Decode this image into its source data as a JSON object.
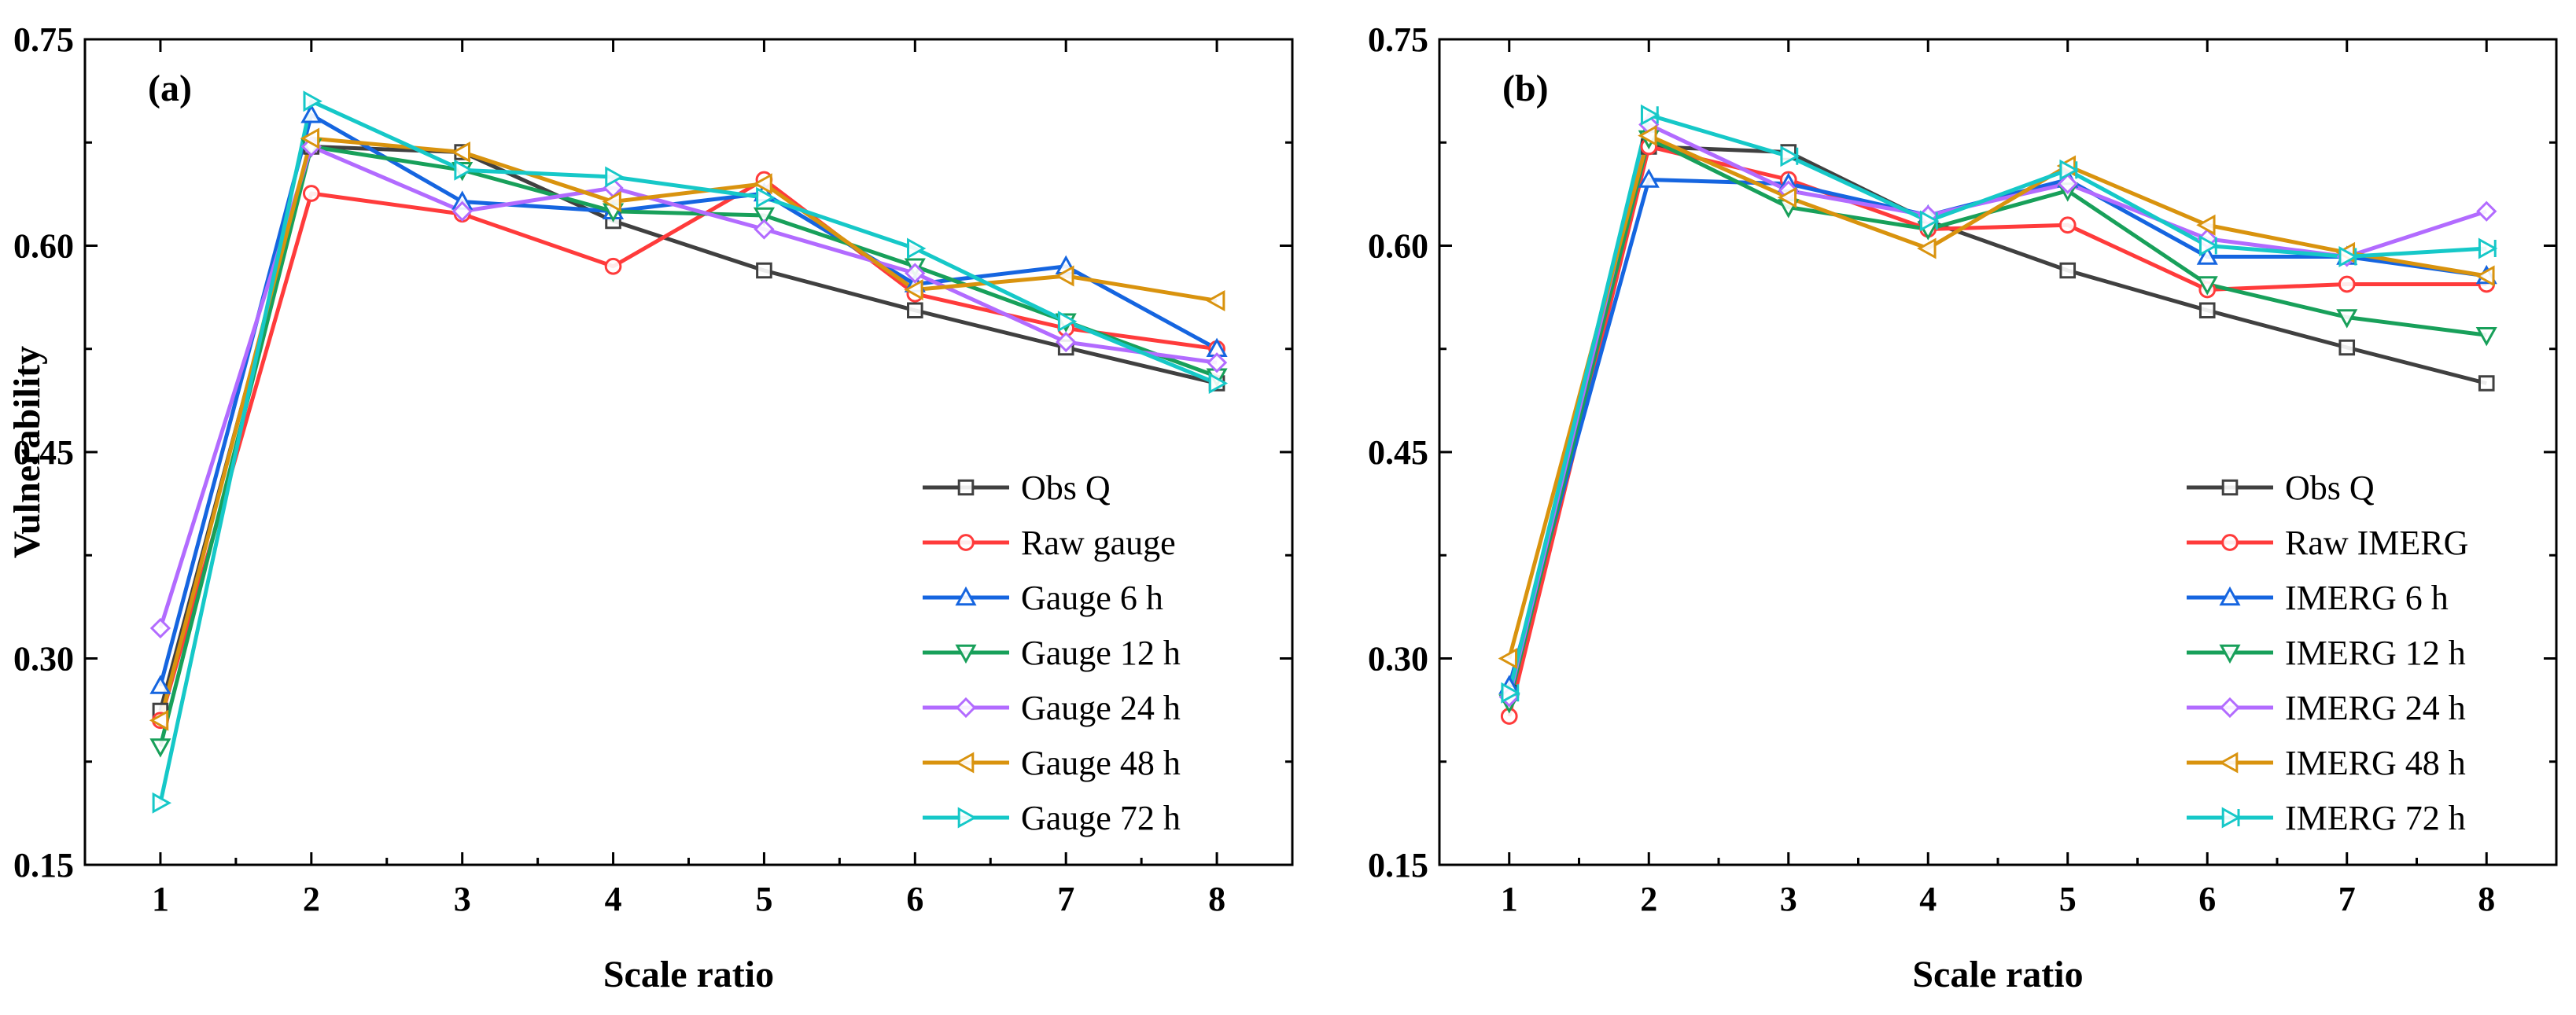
{
  "chart_data": [
    {
      "type": "line",
      "panel_label": "(a)",
      "xlabel": "Scale ratio",
      "ylabel": "Vulnerability",
      "x": [
        1,
        2,
        3,
        4,
        5,
        6,
        7,
        8
      ],
      "xlim": [
        0.5,
        8.5
      ],
      "ylim": [
        0.15,
        0.75
      ],
      "yticks": [
        "0.15",
        "0.30",
        "0.45",
        "0.60",
        "0.75"
      ],
      "legend_position": "bottom-right",
      "series": [
        {
          "name": "Obs Q",
          "color": "#404040",
          "marker": "square",
          "values": [
            0.262,
            0.672,
            0.668,
            0.618,
            0.582,
            0.553,
            0.526,
            0.5
          ]
        },
        {
          "name": "Raw gauge",
          "color": "#ff3b3b",
          "marker": "circle",
          "values": [
            0.255,
            0.638,
            0.623,
            0.585,
            0.648,
            0.565,
            0.54,
            0.525
          ]
        },
        {
          "name": "Gauge 6 h",
          "color": "#1565e0",
          "marker": "triangle-up",
          "values": [
            0.28,
            0.695,
            0.632,
            0.625,
            0.638,
            0.572,
            0.585,
            0.525
          ]
        },
        {
          "name": "Gauge 12 h",
          "color": "#18a05a",
          "marker": "triangle-down",
          "values": [
            0.236,
            0.672,
            0.655,
            0.625,
            0.622,
            0.585,
            0.545,
            0.505
          ]
        },
        {
          "name": "Gauge 24 h",
          "color": "#b26bff",
          "marker": "diamond",
          "values": [
            0.322,
            0.672,
            0.625,
            0.642,
            0.612,
            0.58,
            0.53,
            0.515
          ]
        },
        {
          "name": "Gauge 48 h",
          "color": "#d9930e",
          "marker": "triangle-left",
          "values": [
            0.255,
            0.678,
            0.668,
            0.632,
            0.645,
            0.568,
            0.578,
            0.56
          ]
        },
        {
          "name": "Gauge 72 h",
          "color": "#16c8c8",
          "marker": "triangle-right",
          "values": [
            0.195,
            0.705,
            0.655,
            0.65,
            0.635,
            0.598,
            0.545,
            0.5
          ]
        }
      ]
    },
    {
      "type": "line",
      "panel_label": "(b)",
      "xlabel": "Scale ratio",
      "ylabel": "",
      "x": [
        1,
        2,
        3,
        4,
        5,
        6,
        7,
        8
      ],
      "xlim": [
        0.5,
        8.5
      ],
      "ylim": [
        0.15,
        0.75
      ],
      "yticks": [
        "0.15",
        "0.30",
        "0.45",
        "0.60",
        "0.75"
      ],
      "legend_position": "bottom-right",
      "series": [
        {
          "name": "Obs Q",
          "color": "#404040",
          "marker": "square",
          "values": [
            0.275,
            0.672,
            0.668,
            0.618,
            0.582,
            0.553,
            0.526,
            0.5
          ]
        },
        {
          "name": "Raw IMERG",
          "color": "#ff3b3b",
          "marker": "circle",
          "values": [
            0.258,
            0.672,
            0.648,
            0.612,
            0.615,
            0.568,
            0.572,
            0.572
          ]
        },
        {
          "name": "IMERG 6 h",
          "color": "#1565e0",
          "marker": "triangle-up",
          "values": [
            0.28,
            0.648,
            0.645,
            0.622,
            0.648,
            0.592,
            0.592,
            0.578
          ]
        },
        {
          "name": "IMERG 12 h",
          "color": "#18a05a",
          "marker": "triangle-down",
          "values": [
            0.268,
            0.678,
            0.628,
            0.612,
            0.64,
            0.572,
            0.548,
            0.535
          ]
        },
        {
          "name": "IMERG 24 h",
          "color": "#b26bff",
          "marker": "diamond",
          "values": [
            0.272,
            0.688,
            0.64,
            0.622,
            0.645,
            0.605,
            0.592,
            0.625
          ]
        },
        {
          "name": "IMERG 48 h",
          "color": "#d9930e",
          "marker": "triangle-left",
          "values": [
            0.3,
            0.68,
            0.635,
            0.598,
            0.658,
            0.615,
            0.595,
            0.578
          ]
        },
        {
          "name": "IMERG 72 h",
          "color": "#16c8c8",
          "marker": "triangle-right-bar",
          "values": [
            0.275,
            0.695,
            0.665,
            0.618,
            0.655,
            0.6,
            0.592,
            0.598
          ]
        }
      ]
    }
  ]
}
